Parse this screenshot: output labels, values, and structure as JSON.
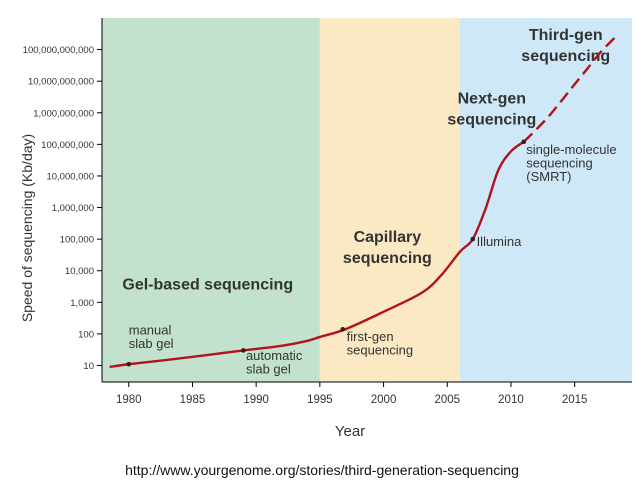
{
  "chart_data": {
    "type": "line",
    "title": "",
    "xlabel": "Year",
    "ylabel": "Speed of sequencing (Kb/day)",
    "y_scale": "log",
    "xlim": [
      1977.9,
      2019.5
    ],
    "ylim": [
      3,
      1000000000000
    ],
    "grid": false,
    "x_ticks": [
      "1980",
      "1985",
      "1990",
      "1995",
      "2000",
      "2005",
      "2010",
      "2015"
    ],
    "y_ticks": [
      "10",
      "100",
      "1,000",
      "10,000",
      "100,000",
      "1,000,000",
      "10,000,000",
      "100,000,000",
      "1,000,000,000",
      "10,000,000,000",
      "100,000,000,000"
    ],
    "regions": [
      {
        "label": "Gel-based sequencing",
        "start": 1977.9,
        "end": 1995,
        "color": "#c3e2cd"
      },
      {
        "label": "Capillary sequencing",
        "start": 1995,
        "end": 2006,
        "color": "#fbe9c3"
      },
      {
        "label": "Next-gen sequencing",
        "start": 2006,
        "end": 2019.5,
        "color": "#cfe8f7"
      }
    ],
    "region_titles": [
      {
        "lines": [
          "Gel-based sequencing"
        ],
        "x": 1986.2,
        "y": 2500
      },
      {
        "lines": [
          "Capillary",
          "sequencing"
        ],
        "x": 2000.3,
        "y": 80000
      },
      {
        "lines": [
          "Next-gen",
          "sequencing"
        ],
        "x": 2008.5,
        "y": 2000000000
      },
      {
        "lines": [
          "Third-gen",
          "sequencing"
        ],
        "x": 2014.3,
        "y": 200000000000
      }
    ],
    "series": [
      {
        "style": "solid",
        "color": "#b0141b",
        "x": [
          1978.5,
          1980,
          1983,
          1986,
          1989,
          1992,
          1994,
          1995,
          1997,
          2000,
          2003,
          2004.5,
          2006,
          2007,
          2008,
          2009,
          2010,
          2011
        ],
        "y": [
          9,
          11,
          15,
          21,
          30,
          42,
          60,
          80,
          140,
          500,
          2000,
          7000,
          40000,
          100000,
          900000,
          15000000,
          60000000,
          120000000
        ]
      },
      {
        "style": "dashed",
        "color": "#b0141b",
        "x": [
          2011,
          2012,
          2013,
          2014,
          2015,
          2016,
          2017,
          2018.2
        ],
        "y": [
          120000000,
          300000000,
          800000000,
          2500000000,
          8000000000,
          25000000000,
          80000000000,
          250000000000
        ]
      }
    ],
    "milestones": [
      {
        "lines": [
          "manual",
          "slab gel"
        ],
        "x": 1980,
        "y": 11,
        "label_x": 1980,
        "label_y": 95,
        "anchor": "start"
      },
      {
        "lines": [
          "automatic",
          "slab gel"
        ],
        "x": 1989,
        "y": 30,
        "label_x": 1989.2,
        "label_y": 15,
        "anchor": "start"
      },
      {
        "lines": [
          "first-gen",
          "sequencing"
        ],
        "x": 1996.8,
        "y": 140,
        "label_x": 1997.1,
        "label_y": 60,
        "anchor": "start"
      },
      {
        "lines": [
          "Illumina"
        ],
        "x": 2007,
        "y": 100000,
        "label_x": 2007.3,
        "label_y": 60000,
        "anchor": "start"
      },
      {
        "lines": [
          "single-molecule",
          "sequencing",
          "(SMRT)"
        ],
        "x": 2011,
        "y": 120000000,
        "label_x": 2011.2,
        "label_y": 50000000,
        "anchor": "start"
      }
    ],
    "colors": {
      "line": "#b0141b",
      "axis": "#000000",
      "text": "#333333"
    }
  },
  "source_url": "http://www.yourgenome.org/stories/third-generation-sequencing"
}
